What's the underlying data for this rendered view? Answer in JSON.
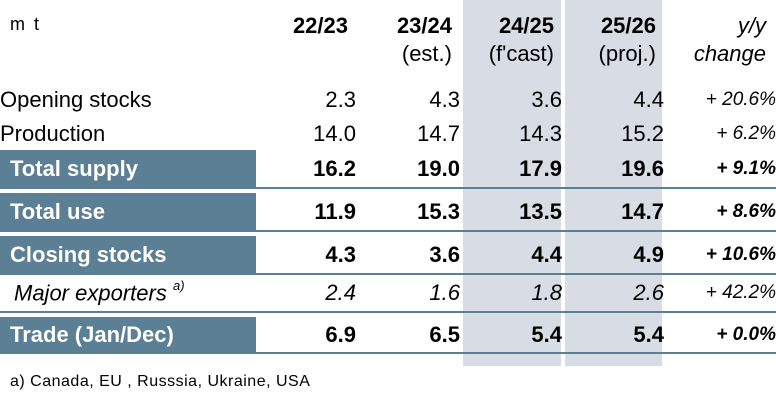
{
  "header": {
    "unit": "m t",
    "columns": [
      {
        "year": "22/23",
        "sub": ""
      },
      {
        "year": "23/24",
        "sub": "(est.)"
      },
      {
        "year": "24/25",
        "sub": "(f'cast)"
      },
      {
        "year": "25/26",
        "sub": "(proj.)"
      }
    ],
    "yy_line1": "y/y",
    "yy_line2": "change"
  },
  "rows": [
    {
      "label": "Opening stocks",
      "values": [
        "2.3",
        "4.3",
        "3.6",
        "4.4"
      ],
      "change": "+ 20.6%"
    },
    {
      "label": "Production",
      "values": [
        "14.0",
        "14.7",
        "14.3",
        "15.2"
      ],
      "change": "+ 6.2%"
    },
    {
      "label": "Total supply",
      "values": [
        "16.2",
        "19.0",
        "17.9",
        "19.6"
      ],
      "change": "+ 9.1%"
    },
    {
      "label": "Total use",
      "values": [
        "11.9",
        "15.3",
        "13.5",
        "14.7"
      ],
      "change": "+ 8.6%"
    },
    {
      "label": "Closing stocks",
      "values": [
        "4.3",
        "3.6",
        "4.4",
        "4.9"
      ],
      "change": "+ 10.6%"
    },
    {
      "label": "Major exporters",
      "footnote_mark": "a)",
      "values": [
        "2.4",
        "1.6",
        "1.8",
        "2.6"
      ],
      "change": "+ 42.2%"
    },
    {
      "label": "Trade (Jan/Dec)",
      "values": [
        "6.9",
        "6.5",
        "5.4",
        "5.4"
      ],
      "change": "+ 0.0%"
    }
  ],
  "footnote": "a) Canada, EU , Russsia, Ukraine, USA",
  "colors": {
    "bar": "#5b7f94",
    "shade": "#d8dce4"
  }
}
